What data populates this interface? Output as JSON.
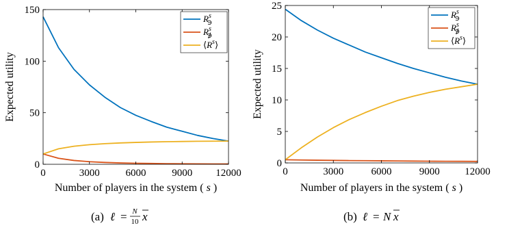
{
  "chart_data": [
    {
      "type": "line",
      "subfigure": "(a)",
      "caption_math": "ℓ = N/10 x̄",
      "xlabel": "Number of players in the system (",
      "xlabel_var": "s",
      "xlabel_close": ")",
      "ylabel": "Expected utility",
      "xlim": [
        0,
        12000
      ],
      "ylim": [
        0,
        150
      ],
      "xticks": [
        0,
        3000,
        6000,
        9000,
        12000
      ],
      "yticks": [
        0,
        50,
        100,
        150
      ],
      "legend_position": "top-right",
      "x": [
        0,
        1000,
        2000,
        3000,
        4000,
        5000,
        6000,
        7000,
        8000,
        9000,
        10000,
        11000,
        12000
      ],
      "series": [
        {
          "name": "R^s_∋",
          "color": "#0072BD",
          "values": [
            143,
            113,
            92,
            77,
            65,
            55,
            47.5,
            41.5,
            36,
            32,
            28,
            25,
            22.5
          ]
        },
        {
          "name": "R^s_∌",
          "color": "#D95319",
          "values": [
            10,
            5.8,
            3.7,
            2.5,
            1.8,
            1.3,
            1.0,
            0.8,
            0.6,
            0.5,
            0.4,
            0.35,
            0.3
          ]
        },
        {
          "name": "⟨R^s⟩",
          "color": "#EDB120",
          "values": [
            10,
            15,
            17.5,
            19,
            20,
            20.7,
            21.2,
            21.6,
            21.9,
            22.1,
            22.3,
            22.4,
            22.5
          ]
        }
      ]
    },
    {
      "type": "line",
      "subfigure": "(b)",
      "caption_math": "ℓ = N x̄",
      "xlabel": "Number of players in the system (",
      "xlabel_var": "s",
      "xlabel_close": ")",
      "ylabel": "Expected utility",
      "xlim": [
        0,
        12000
      ],
      "ylim": [
        0,
        25
      ],
      "xticks": [
        0,
        3000,
        6000,
        9000,
        12000
      ],
      "yticks": [
        0,
        5,
        10,
        15,
        20,
        25
      ],
      "legend_position": "top-right",
      "x": [
        0,
        1000,
        2000,
        3000,
        4000,
        5000,
        6000,
        7000,
        8000,
        9000,
        10000,
        11000,
        12000
      ],
      "series": [
        {
          "name": "R^s_∋",
          "color": "#0072BD",
          "values": [
            24.4,
            22.6,
            21.1,
            19.8,
            18.7,
            17.6,
            16.7,
            15.8,
            15.0,
            14.3,
            13.6,
            13.0,
            12.5
          ]
        },
        {
          "name": "R^s_∌",
          "color": "#D95319",
          "values": [
            0.5,
            0.46,
            0.43,
            0.4,
            0.37,
            0.35,
            0.33,
            0.31,
            0.29,
            0.27,
            0.26,
            0.25,
            0.24
          ]
        },
        {
          "name": "⟨R^s⟩",
          "color": "#EDB120",
          "values": [
            0.5,
            2.4,
            4.1,
            5.6,
            6.9,
            8.0,
            9.0,
            9.9,
            10.6,
            11.2,
            11.7,
            12.1,
            12.5
          ]
        }
      ]
    }
  ],
  "legend_labels": {
    "base": "R",
    "sup": "s",
    "sub_in": "∋",
    "sub_notin": "∌",
    "avg_open": "⟨",
    "avg_close": "⟩"
  },
  "captions": {
    "a_label": "(a)",
    "b_label": "(b)",
    "ell": "ℓ",
    "eq": "=",
    "N": "N",
    "ten": "10",
    "xbar": "x"
  }
}
